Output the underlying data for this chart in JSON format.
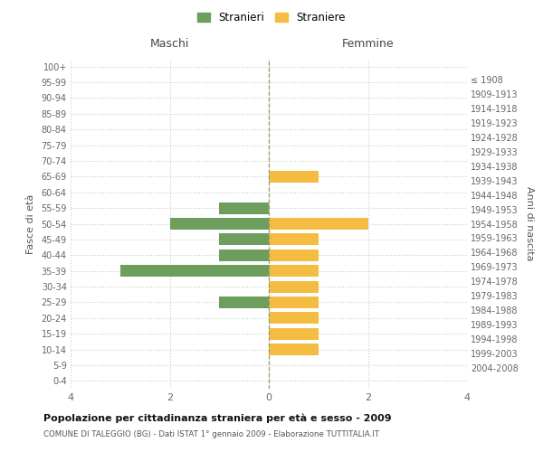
{
  "age_groups": [
    "0-4",
    "5-9",
    "10-14",
    "15-19",
    "20-24",
    "25-29",
    "30-34",
    "35-39",
    "40-44",
    "45-49",
    "50-54",
    "55-59",
    "60-64",
    "65-69",
    "70-74",
    "75-79",
    "80-84",
    "85-89",
    "90-94",
    "95-99",
    "100+"
  ],
  "birth_years": [
    "2004-2008",
    "1999-2003",
    "1994-1998",
    "1989-1993",
    "1984-1988",
    "1979-1983",
    "1974-1978",
    "1969-1973",
    "1964-1968",
    "1959-1963",
    "1954-1958",
    "1949-1953",
    "1944-1948",
    "1939-1943",
    "1934-1938",
    "1929-1933",
    "1924-1928",
    "1919-1923",
    "1914-1918",
    "1909-1913",
    "≤ 1908"
  ],
  "males": [
    0,
    0,
    0,
    0,
    0,
    1,
    0,
    3,
    1,
    1,
    2,
    1,
    0,
    0,
    0,
    0,
    0,
    0,
    0,
    0,
    0
  ],
  "females": [
    0,
    0,
    1,
    1,
    1,
    1,
    1,
    1,
    1,
    1,
    2,
    0,
    0,
    1,
    0,
    0,
    0,
    0,
    0,
    0,
    0
  ],
  "male_color": "#6d9e5e",
  "female_color": "#f5bc42",
  "title": "Popolazione per cittadinanza straniera per età e sesso - 2009",
  "subtitle": "COMUNE DI TALEGGIO (BG) - Dati ISTAT 1° gennaio 2009 - Elaborazione TUTTITALIA.IT",
  "xlabel_left": "Maschi",
  "xlabel_right": "Femmine",
  "ylabel_left": "Fasce di età",
  "ylabel_right": "Anni di nascita",
  "legend_male": "Stranieri",
  "legend_female": "Straniere",
  "xlim": 4,
  "background_color": "#ffffff",
  "grid_color": "#cccccc",
  "bar_height": 0.75
}
